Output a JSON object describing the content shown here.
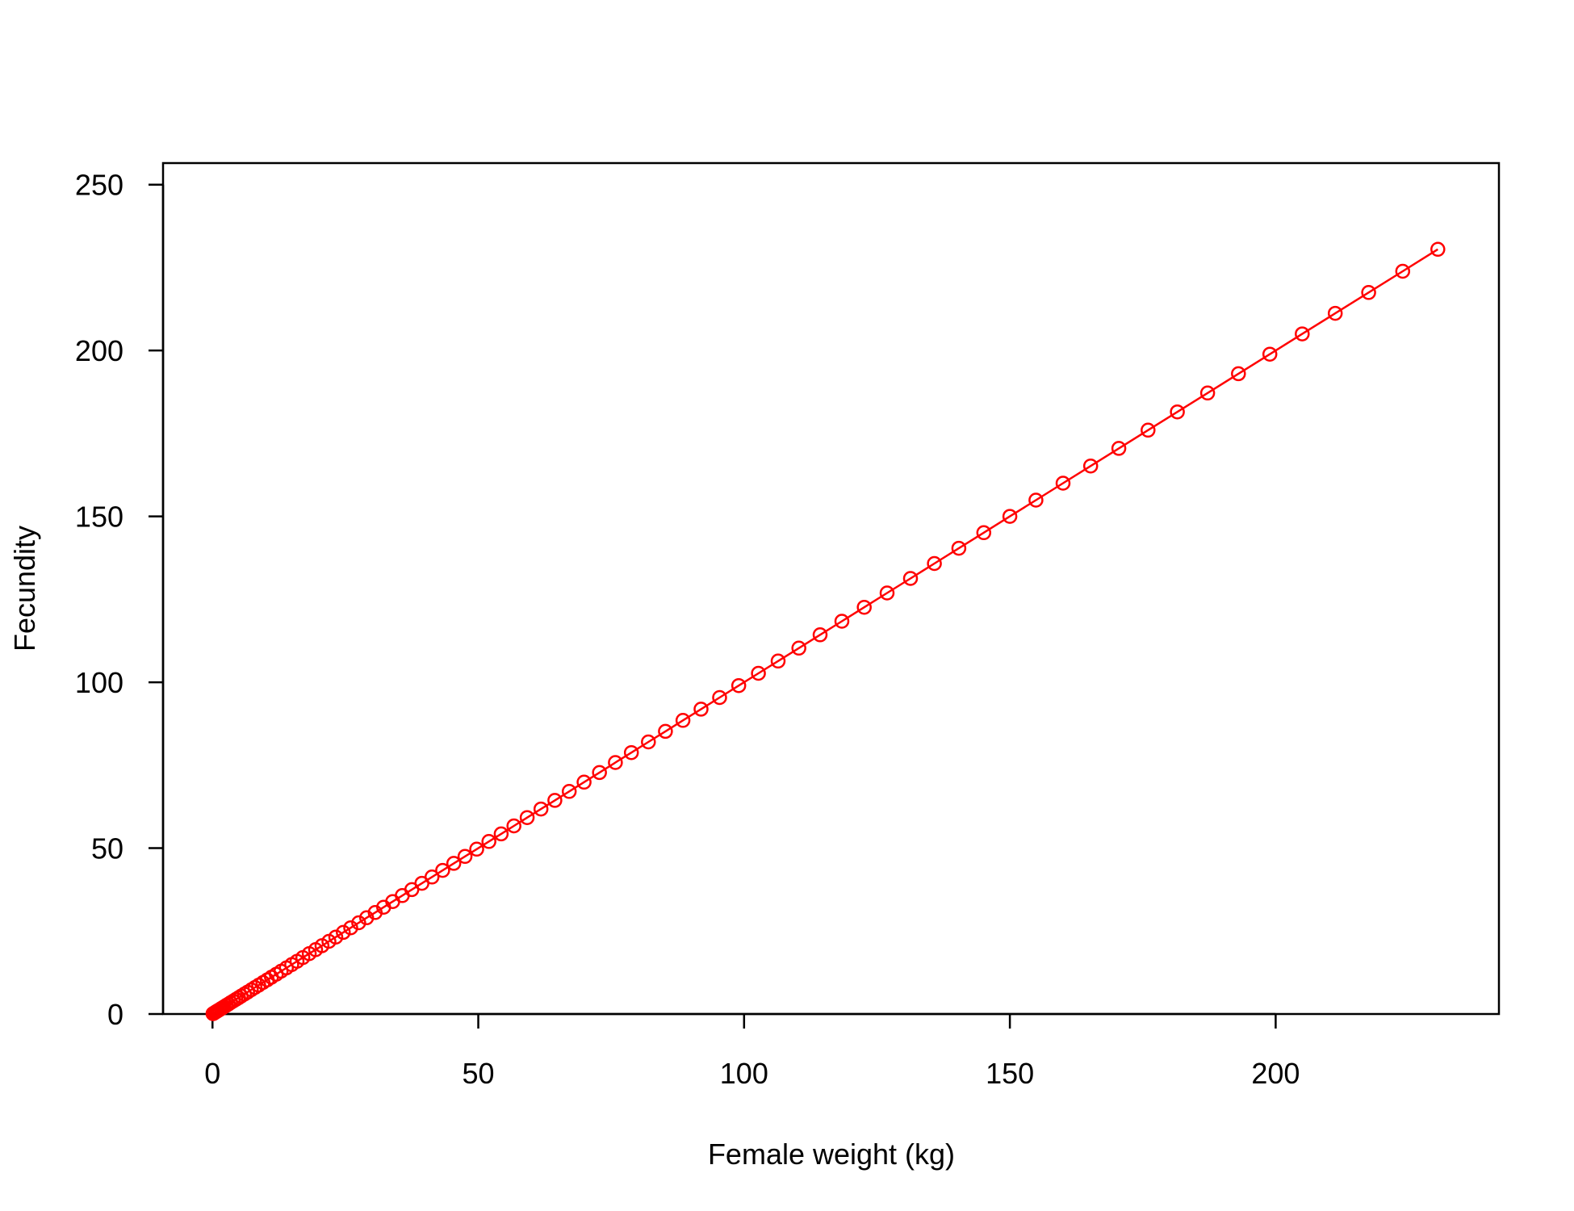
{
  "chart_data": {
    "type": "line",
    "title": "",
    "xlabel": "Female weight (kg)",
    "ylabel": "Fecundity",
    "xlim": [
      -9.3,
      242
    ],
    "ylim": [
      0,
      256.5
    ],
    "xticks": [
      0,
      50,
      100,
      150,
      200
    ],
    "yticks": [
      0,
      50,
      100,
      150,
      200,
      250
    ],
    "xtick_labels": [
      "0",
      "50",
      "100",
      "150",
      "200"
    ],
    "ytick_labels": [
      "0",
      "50",
      "100",
      "150",
      "200",
      "250"
    ],
    "grid": false,
    "legend": "none",
    "marker": "open-circle",
    "series": [
      {
        "color": "#ff0000",
        "x": [
          0.1,
          0.2,
          0.4,
          0.6,
          0.8,
          1.0,
          1.3,
          1.6,
          1.9,
          2.2,
          2.6,
          3.0,
          3.4,
          3.9,
          4.4,
          4.9,
          5.4,
          6.0,
          6.6,
          7.3,
          8.0,
          8.7,
          9.5,
          10.3,
          11.1,
          12.0,
          12.9,
          13.9,
          14.9,
          15.9,
          17.0,
          18.2,
          19.4,
          20.6,
          21.9,
          23.2,
          24.6,
          26.0,
          27.5,
          29.0,
          30.6,
          32.2,
          33.9,
          35.7,
          37.5,
          39.4,
          41.3,
          43.3,
          45.4,
          47.5,
          49.7,
          52.0,
          54.3,
          56.7,
          59.2,
          61.8,
          64.4,
          67.1,
          69.9,
          72.8,
          75.8,
          78.8,
          82.0,
          85.2,
          88.5,
          91.9,
          95.4,
          99.0,
          102.7,
          106.4,
          110.3,
          114.3,
          118.4,
          122.6,
          126.9,
          131.3,
          135.8,
          140.4,
          145.1,
          150.0,
          154.9,
          160.0,
          165.2,
          170.5,
          176.0,
          181.5,
          187.2,
          193.0,
          198.9,
          205.0,
          211.2,
          217.5,
          223.9,
          230.5
        ],
        "y": [
          0.1,
          0.2,
          0.4,
          0.6,
          0.8,
          1.0,
          1.3,
          1.6,
          1.9,
          2.2,
          2.6,
          3.0,
          3.4,
          3.9,
          4.4,
          4.9,
          5.4,
          6.0,
          6.6,
          7.3,
          8.0,
          8.7,
          9.5,
          10.3,
          11.1,
          12.0,
          12.9,
          13.9,
          14.9,
          15.9,
          17.0,
          18.2,
          19.4,
          20.6,
          21.9,
          23.2,
          24.6,
          26.0,
          27.5,
          29.0,
          30.6,
          32.2,
          33.9,
          35.7,
          37.5,
          39.4,
          41.3,
          43.3,
          45.4,
          47.5,
          49.7,
          52.0,
          54.3,
          56.7,
          59.2,
          61.8,
          64.4,
          67.1,
          69.9,
          72.8,
          75.8,
          78.8,
          82.0,
          85.2,
          88.5,
          91.9,
          95.4,
          99.0,
          102.7,
          106.4,
          110.3,
          114.3,
          118.4,
          122.6,
          126.9,
          131.3,
          135.8,
          140.4,
          145.1,
          150.0,
          154.9,
          160.0,
          165.2,
          170.5,
          176.0,
          181.5,
          187.2,
          193.0,
          198.9,
          205.0,
          211.2,
          217.5,
          223.9,
          230.5
        ]
      }
    ]
  }
}
